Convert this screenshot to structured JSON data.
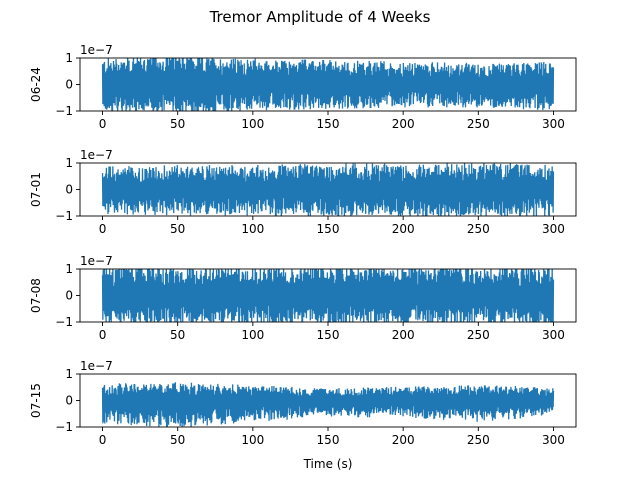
{
  "figure": {
    "title": "Tremor Amplitude of 4 Weeks",
    "xlabel": "Time (s)"
  },
  "colors": {
    "series": "#1f77b4",
    "axes": "#000000",
    "background": "#ffffff"
  },
  "chart_data": [
    {
      "type": "line",
      "ylabel": "06-24",
      "offset_text": "1e−7",
      "y_scale": 1e-07,
      "xlim": [
        -15,
        315
      ],
      "ylim": [
        -1,
        1
      ],
      "xticks": [
        0,
        50,
        100,
        150,
        200,
        250,
        300
      ],
      "xtick_labels": [
        "0",
        "50",
        "100",
        "150",
        "200",
        "250",
        "300"
      ],
      "yticks": [
        -1,
        0,
        1
      ],
      "ytick_labels": [
        "−1",
        "0",
        "1"
      ],
      "x_range": [
        0,
        300
      ],
      "amplitude_envelope": {
        "x": [
          0,
          25,
          50,
          75,
          100,
          150,
          200,
          250,
          300
        ],
        "upper": [
          0.9,
          1.0,
          1.0,
          0.95,
          0.85,
          0.8,
          0.75,
          0.7,
          0.8
        ],
        "lower": [
          -0.9,
          -1.0,
          -1.0,
          -0.95,
          -0.85,
          -0.8,
          -0.75,
          -0.75,
          -0.85
        ]
      },
      "grid": false,
      "legend": "none"
    },
    {
      "type": "line",
      "ylabel": "07-01",
      "offset_text": "1e−7",
      "y_scale": 1e-07,
      "xlim": [
        -15,
        315
      ],
      "ylim": [
        -1,
        1
      ],
      "xticks": [
        0,
        50,
        100,
        150,
        200,
        250,
        300
      ],
      "xtick_labels": [
        "0",
        "50",
        "100",
        "150",
        "200",
        "250",
        "300"
      ],
      "yticks": [
        -1,
        0,
        1
      ],
      "ytick_labels": [
        "−1",
        "0",
        "1"
      ],
      "x_range": [
        0,
        300
      ],
      "amplitude_envelope": {
        "x": [
          0,
          50,
          100,
          150,
          200,
          250,
          300
        ],
        "upper": [
          0.75,
          0.8,
          0.8,
          0.85,
          0.85,
          0.9,
          0.85
        ],
        "lower": [
          -0.8,
          -0.85,
          -0.85,
          -0.9,
          -0.9,
          -0.95,
          -0.9
        ]
      },
      "grid": false,
      "legend": "none"
    },
    {
      "type": "line",
      "ylabel": "07-08",
      "offset_text": "1e−7",
      "y_scale": 1e-07,
      "xlim": [
        -15,
        315
      ],
      "ylim": [
        -1,
        1
      ],
      "xticks": [
        0,
        50,
        100,
        150,
        200,
        250,
        300
      ],
      "xtick_labels": [
        "0",
        "50",
        "100",
        "150",
        "200",
        "250",
        "300"
      ],
      "yticks": [
        -1,
        0,
        1
      ],
      "ytick_labels": [
        "−1",
        "0",
        "1"
      ],
      "x_range": [
        0,
        300
      ],
      "amplitude_envelope": {
        "x": [
          0,
          50,
          100,
          150,
          200,
          250,
          300
        ],
        "upper": [
          1.0,
          1.0,
          1.0,
          1.0,
          1.0,
          1.0,
          1.0
        ],
        "lower": [
          -1.0,
          -1.0,
          -1.0,
          -1.0,
          -1.0,
          -1.0,
          -1.0
        ]
      },
      "grid": false,
      "legend": "none"
    },
    {
      "type": "line",
      "ylabel": "07-15",
      "offset_text": "1e−7",
      "y_scale": 1e-07,
      "xlim": [
        -15,
        315
      ],
      "ylim": [
        -1,
        1
      ],
      "xticks": [
        0,
        50,
        100,
        150,
        200,
        250,
        300
      ],
      "xtick_labels": [
        "0",
        "50",
        "100",
        "150",
        "200",
        "250",
        "300"
      ],
      "yticks": [
        -1,
        0,
        1
      ],
      "ytick_labels": [
        "−1",
        "0",
        "1"
      ],
      "x_range": [
        0,
        300
      ],
      "amplitude_envelope": {
        "x": [
          0,
          50,
          100,
          150,
          200,
          250,
          300
        ],
        "upper": [
          0.55,
          0.6,
          0.5,
          0.4,
          0.45,
          0.5,
          0.45
        ],
        "lower": [
          -0.75,
          -0.9,
          -0.7,
          -0.55,
          -0.55,
          -0.7,
          -0.5
        ]
      },
      "grid": false,
      "legend": "none"
    }
  ]
}
